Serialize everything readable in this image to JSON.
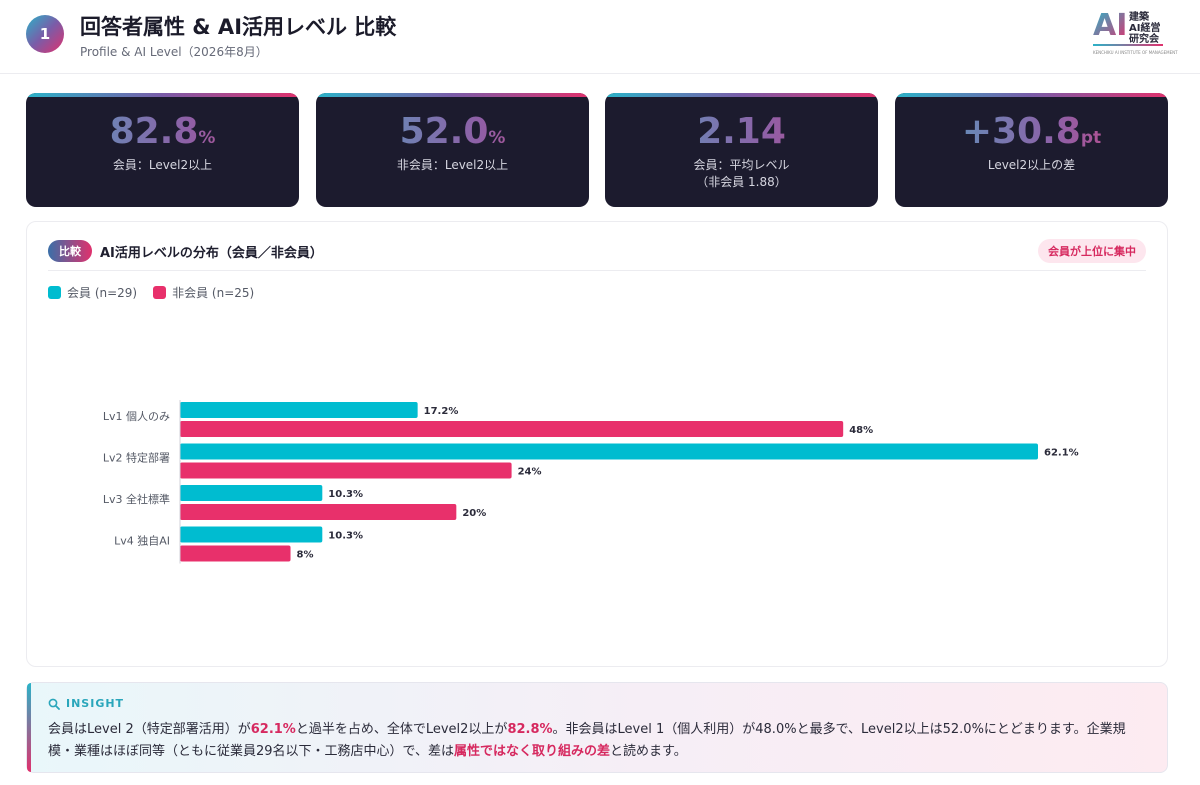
{
  "header": {
    "page_number": "1",
    "title": "回答者属性 & AI活用レベル 比較",
    "subtitle": "Profile & AI Level（2026年8月）",
    "logo_ai": "AI",
    "logo_text": "建築\nAI経営\n研究会",
    "logo_small": "KENCHIKU AI INSTITUTE OF MANAGEMENT"
  },
  "kpis": [
    {
      "value": "82.8",
      "unit": "%",
      "label": "会員：Level2以上"
    },
    {
      "value": "52.0",
      "unit": "%",
      "label": "非会員：Level2以上"
    },
    {
      "value": "2.14",
      "unit": "",
      "label": "会員：平均レベル\n（非会員 1.88）"
    },
    {
      "value": "+30.8",
      "unit": "pt",
      "label": "Level2以上の差"
    }
  ],
  "chart_card": {
    "badge": "比較",
    "title": "AI活用レベルの分布（会員／非会員）",
    "note": "会員が上位に集中"
  },
  "chart_data": {
    "type": "bar",
    "orientation": "horizontal",
    "categories": [
      "Lv1 個人のみ",
      "Lv2 特定部署",
      "Lv3 全社標準",
      "Lv4 独自AI"
    ],
    "series": [
      {
        "name": "会員 (n=29)",
        "values": [
          17.2,
          62.1,
          10.3,
          10.3
        ],
        "labels": [
          "17.2%",
          "62.1%",
          "10.3%",
          "10.3%"
        ],
        "color": "#00bcd0"
      },
      {
        "name": "非会員 (n=25)",
        "values": [
          48,
          24,
          20,
          8
        ],
        "labels": [
          "48%",
          "24%",
          "20%",
          "8%"
        ],
        "color": "#e8306b"
      }
    ],
    "xlim": [
      0,
      62.1
    ],
    "grid": false,
    "legend": "top-left"
  },
  "insight": {
    "head": "INSIGHT",
    "icon": "magnifier-icon",
    "seg1": "会員はLevel 2（特定部署活用）が",
    "hl1": "62.1%",
    "seg2": "と過半を占め、全体でLevel2以上が",
    "hl2": "82.8%",
    "seg3": "。非会員はLevel 1（個人利用）が48.0%と最多で、Level2以上は52.0%にとどまります。企業規模・業種はほぼ同等（ともに従業員29名以下・工務店中心）で、差は",
    "hl3": "属性ではなく取り組みの差",
    "seg4": "と読めます。"
  }
}
